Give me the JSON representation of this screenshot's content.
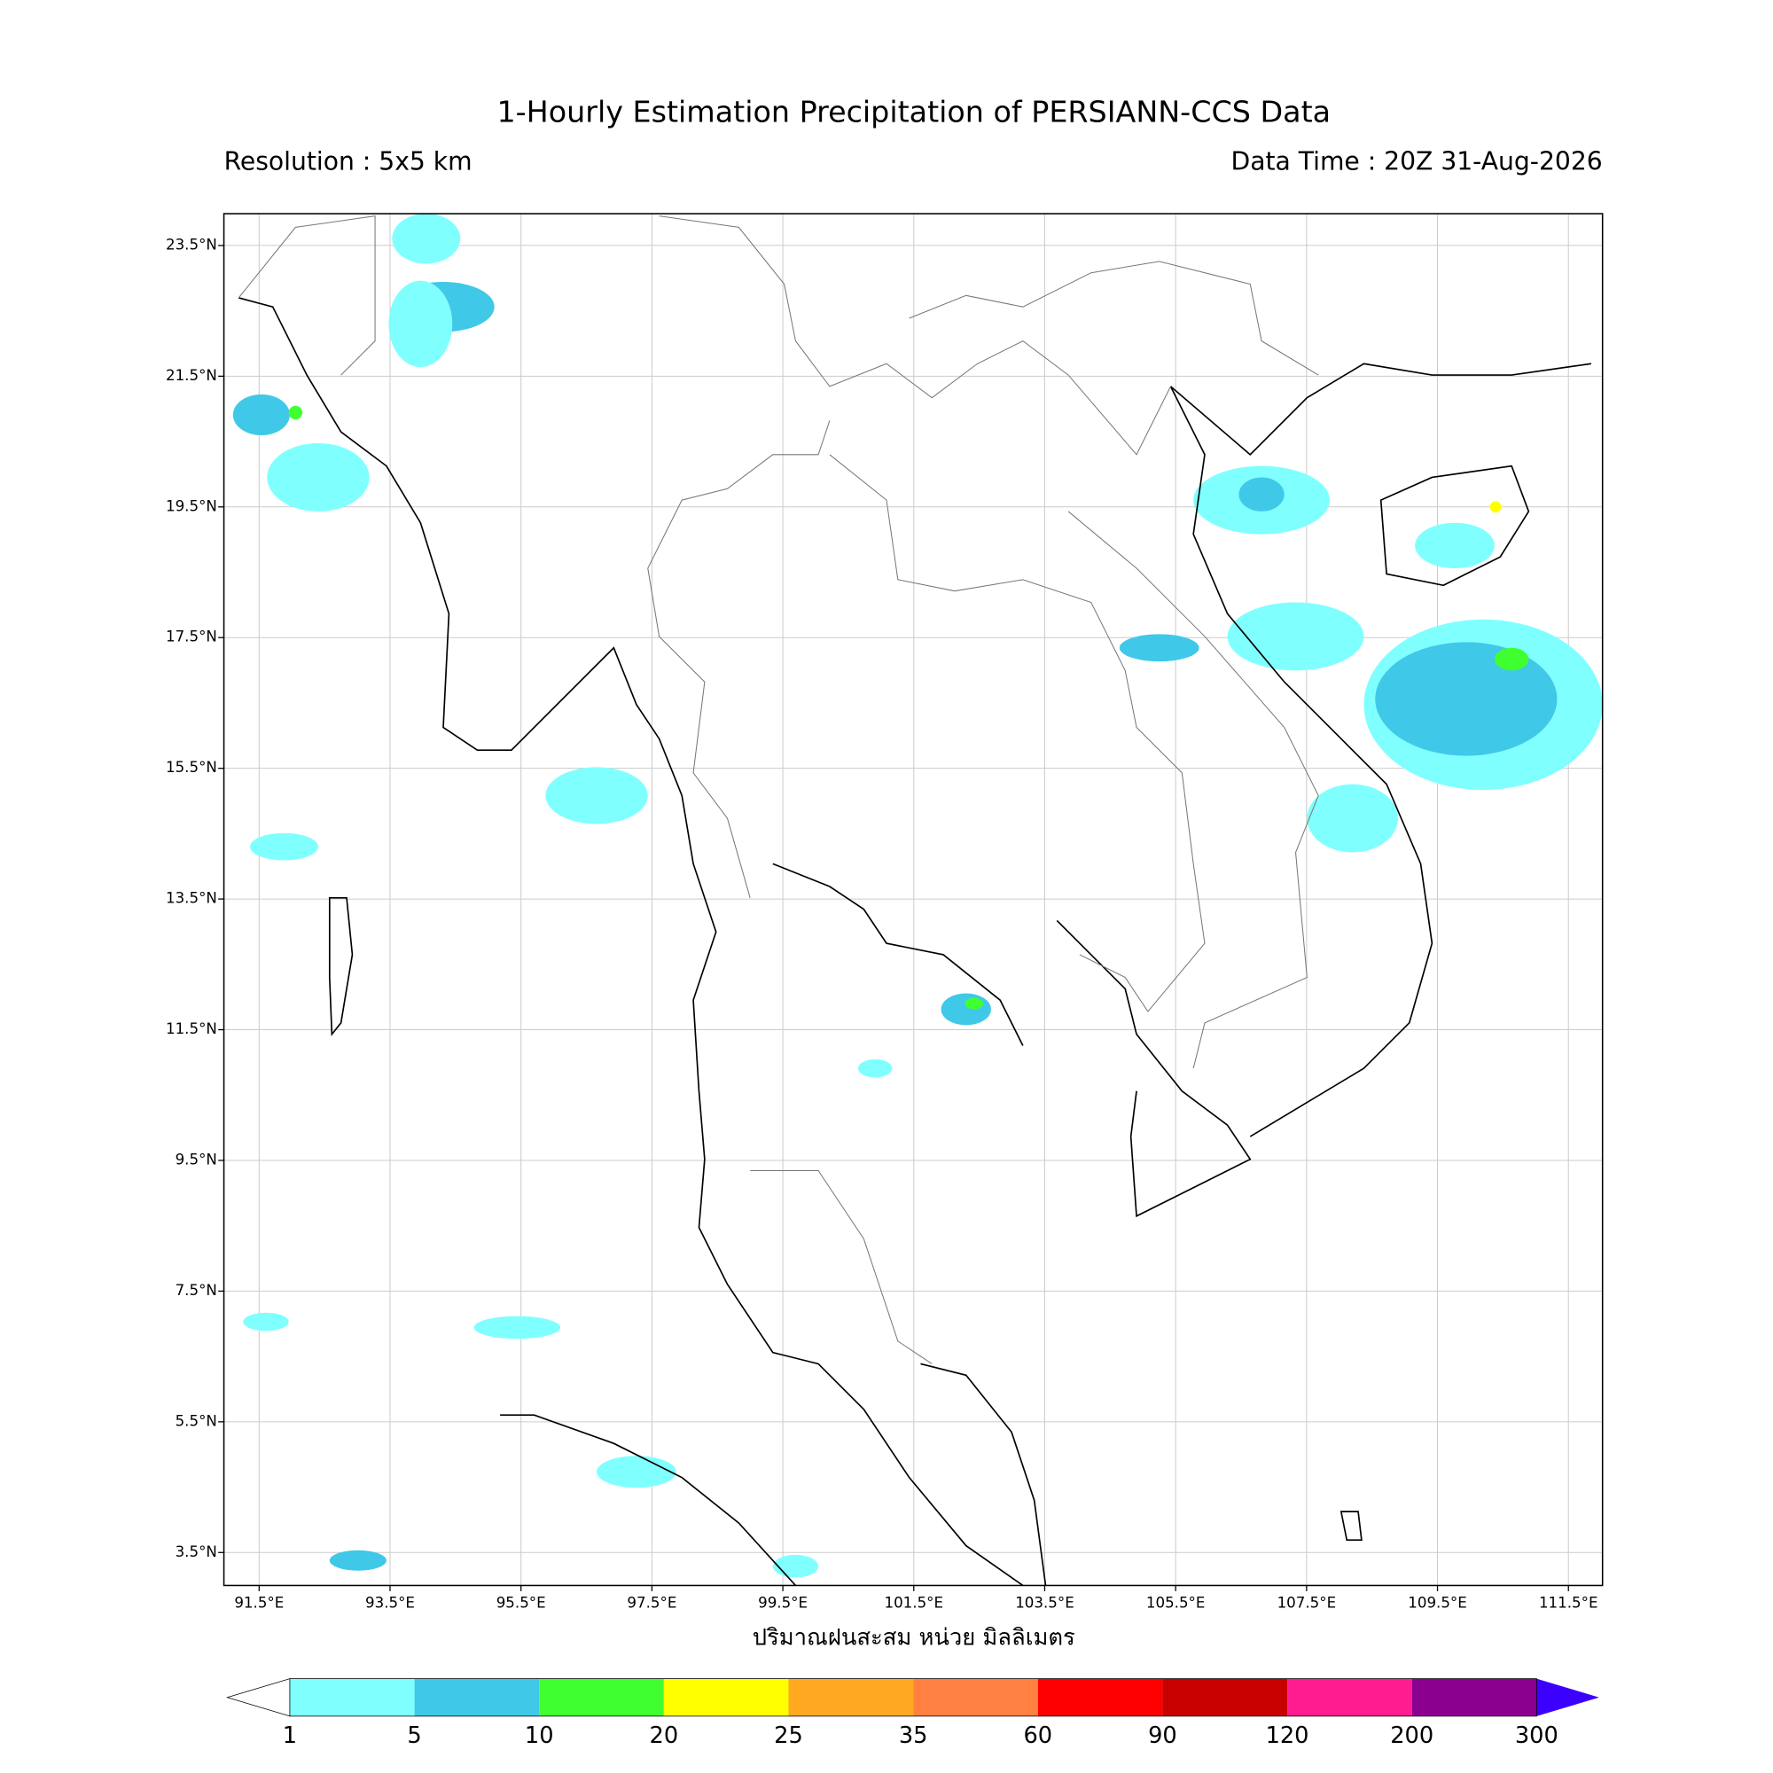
{
  "header": {
    "title": "1-Hourly Estimation Precipitation of PERSIANN-CCS Data",
    "resolution": "Resolution : 5x5 km",
    "data_time": "Data Time : 20Z 31-Aug-2026"
  },
  "map": {
    "lat_ticks": [
      {
        "value": 23.5,
        "label": "23.5°N"
      },
      {
        "value": 21.5,
        "label": "21.5°N"
      },
      {
        "value": 19.5,
        "label": "19.5°N"
      },
      {
        "value": 17.5,
        "label": "17.5°N"
      },
      {
        "value": 15.5,
        "label": "15.5°N"
      },
      {
        "value": 13.5,
        "label": "13.5°N"
      },
      {
        "value": 11.5,
        "label": "11.5°N"
      },
      {
        "value": 9.5,
        "label": "9.5°N"
      },
      {
        "value": 7.5,
        "label": "7.5°N"
      },
      {
        "value": 5.5,
        "label": "5.5°N"
      },
      {
        "value": 3.5,
        "label": "3.5°N"
      }
    ],
    "lon_ticks": [
      {
        "value": 91.5,
        "label": "91.5°E"
      },
      {
        "value": 93.5,
        "label": "93.5°E"
      },
      {
        "value": 95.5,
        "label": "95.5°E"
      },
      {
        "value": 97.5,
        "label": "97.5°E"
      },
      {
        "value": 99.5,
        "label": "99.5°E"
      },
      {
        "value": 101.5,
        "label": "101.5°E"
      },
      {
        "value": 103.5,
        "label": "103.5°E"
      },
      {
        "value": 105.5,
        "label": "105.5°E"
      },
      {
        "value": 107.5,
        "label": "107.5°E"
      },
      {
        "value": 109.5,
        "label": "109.5°E"
      },
      {
        "value": 111.5,
        "label": "111.5°E"
      }
    ],
    "x_label": "ปริมาณฝนสะสม หน่วย มิลลิเมตร"
  },
  "colorbar": {
    "levels": [
      1,
      5,
      10,
      20,
      25,
      35,
      60,
      90,
      120,
      200,
      300
    ],
    "colors": [
      "#80ffff",
      "#40c8e8",
      "#40ff30",
      "#ffff00",
      "#ffa820",
      "#ff8040",
      "#ff0000",
      "#c80000",
      "#ff1c90",
      "#8c0090"
    ],
    "over_color": "#3c00ff",
    "under_color": "#ffffff"
  }
}
